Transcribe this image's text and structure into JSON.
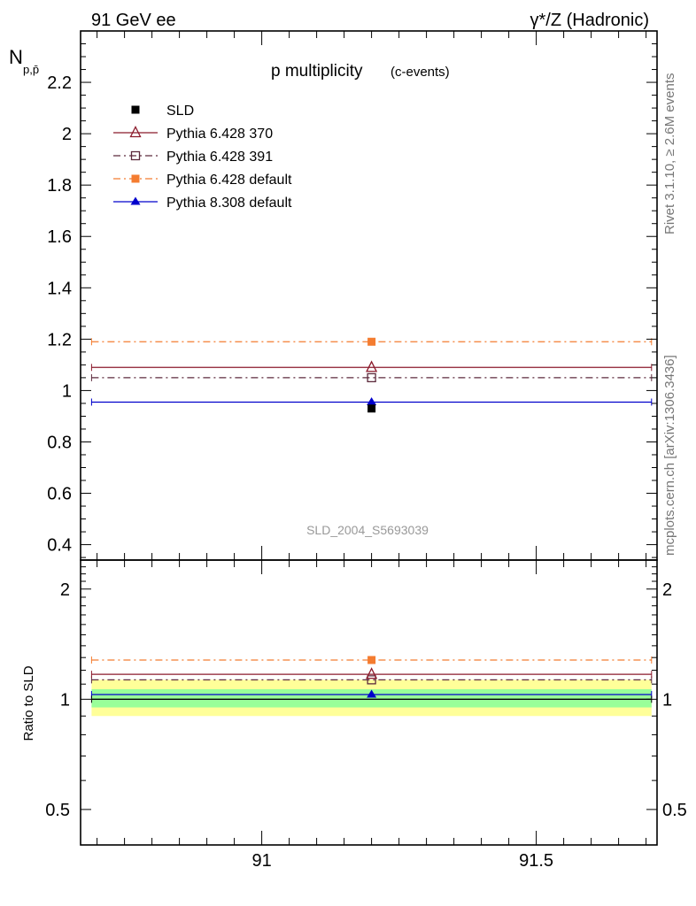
{
  "header": {
    "left": "91 GeV ee",
    "right": "γ*/Z (Hadronic)"
  },
  "side_labels": {
    "rivet": "Rivet 3.1.10, ≥ 2.6M events",
    "mcplots": "mcplots.cern.ch [arXiv:1306.3436]"
  },
  "watermark": "SLD_2004_S5693039",
  "chart_data": [
    {
      "type": "scatter",
      "title": "p multiplicity",
      "subtitle": "(c-events)",
      "ylabel": "N_{p,p̄}",
      "xlim": [
        90.67,
        91.72
      ],
      "ylim": [
        0.34,
        2.4
      ],
      "yticks": [
        0.4,
        0.6,
        0.8,
        1,
        1.2,
        1.4,
        1.6,
        1.8,
        2,
        2.2
      ],
      "ytick_labels": [
        "0.4",
        "0.6",
        "0.8",
        "1",
        "1.2",
        "1.4",
        "1.6",
        "1.8",
        "2",
        "2.2"
      ],
      "x_range_of_bin": [
        90.69,
        91.71
      ],
      "legend_position": "top-left",
      "series": [
        {
          "name": "SLD",
          "x": 91.2,
          "y": 0.93,
          "color": "#000000",
          "marker": "filled-square",
          "line": "none"
        },
        {
          "name": "Pythia 6.428 370",
          "x": 91.2,
          "y": 1.09,
          "color": "#8b1a2b",
          "marker": "open-triangle",
          "line": "solid"
        },
        {
          "name": "Pythia 6.428 391",
          "x": 91.2,
          "y": 1.05,
          "color": "#5c2a3c",
          "marker": "open-square",
          "line": "dash-dot"
        },
        {
          "name": "Pythia 6.428 default",
          "x": 91.2,
          "y": 1.19,
          "color": "#f47c30",
          "marker": "filled-square",
          "line": "dash-dot"
        },
        {
          "name": "Pythia 8.308 default",
          "x": 91.2,
          "y": 0.955,
          "color": "#0000cc",
          "marker": "filled-triangle",
          "line": "solid"
        }
      ]
    },
    {
      "type": "scatter",
      "ylabel": "Ratio to SLD",
      "xlim": [
        90.67,
        91.72
      ],
      "ylim": [
        0.4,
        2.4
      ],
      "log_y": true,
      "yticks": [
        0.5,
        1,
        2
      ],
      "ytick_labels": [
        "0.5",
        "1",
        "2"
      ],
      "xticks": [
        91,
        91.5
      ],
      "xtick_labels": [
        "91",
        "91.5"
      ],
      "bands": [
        {
          "name": "2 sigma",
          "lo": 0.9,
          "hi": 1.13,
          "color": "#ffff99"
        },
        {
          "name": "1 sigma",
          "lo": 0.95,
          "hi": 1.065,
          "color": "#99ff99"
        }
      ],
      "series": [
        {
          "name": "SLD",
          "x": 91.2,
          "y": 1.0,
          "color": "#000000",
          "line": "solid"
        },
        {
          "name": "Pythia 6.428 370",
          "x": 91.2,
          "y": 1.17,
          "color": "#8b1a2b",
          "marker": "open-triangle",
          "line": "solid"
        },
        {
          "name": "Pythia 6.428 391",
          "x": 91.2,
          "y": 1.13,
          "color": "#5c2a3c",
          "marker": "open-square",
          "line": "dash-dot"
        },
        {
          "name": "Pythia 6.428 default",
          "x": 91.2,
          "y": 1.28,
          "color": "#f47c30",
          "marker": "filled-square",
          "line": "dash-dot"
        },
        {
          "name": "Pythia 8.308 default",
          "x": 91.2,
          "y": 1.03,
          "color": "#0000cc",
          "marker": "filled-triangle",
          "line": "solid"
        }
      ]
    }
  ]
}
